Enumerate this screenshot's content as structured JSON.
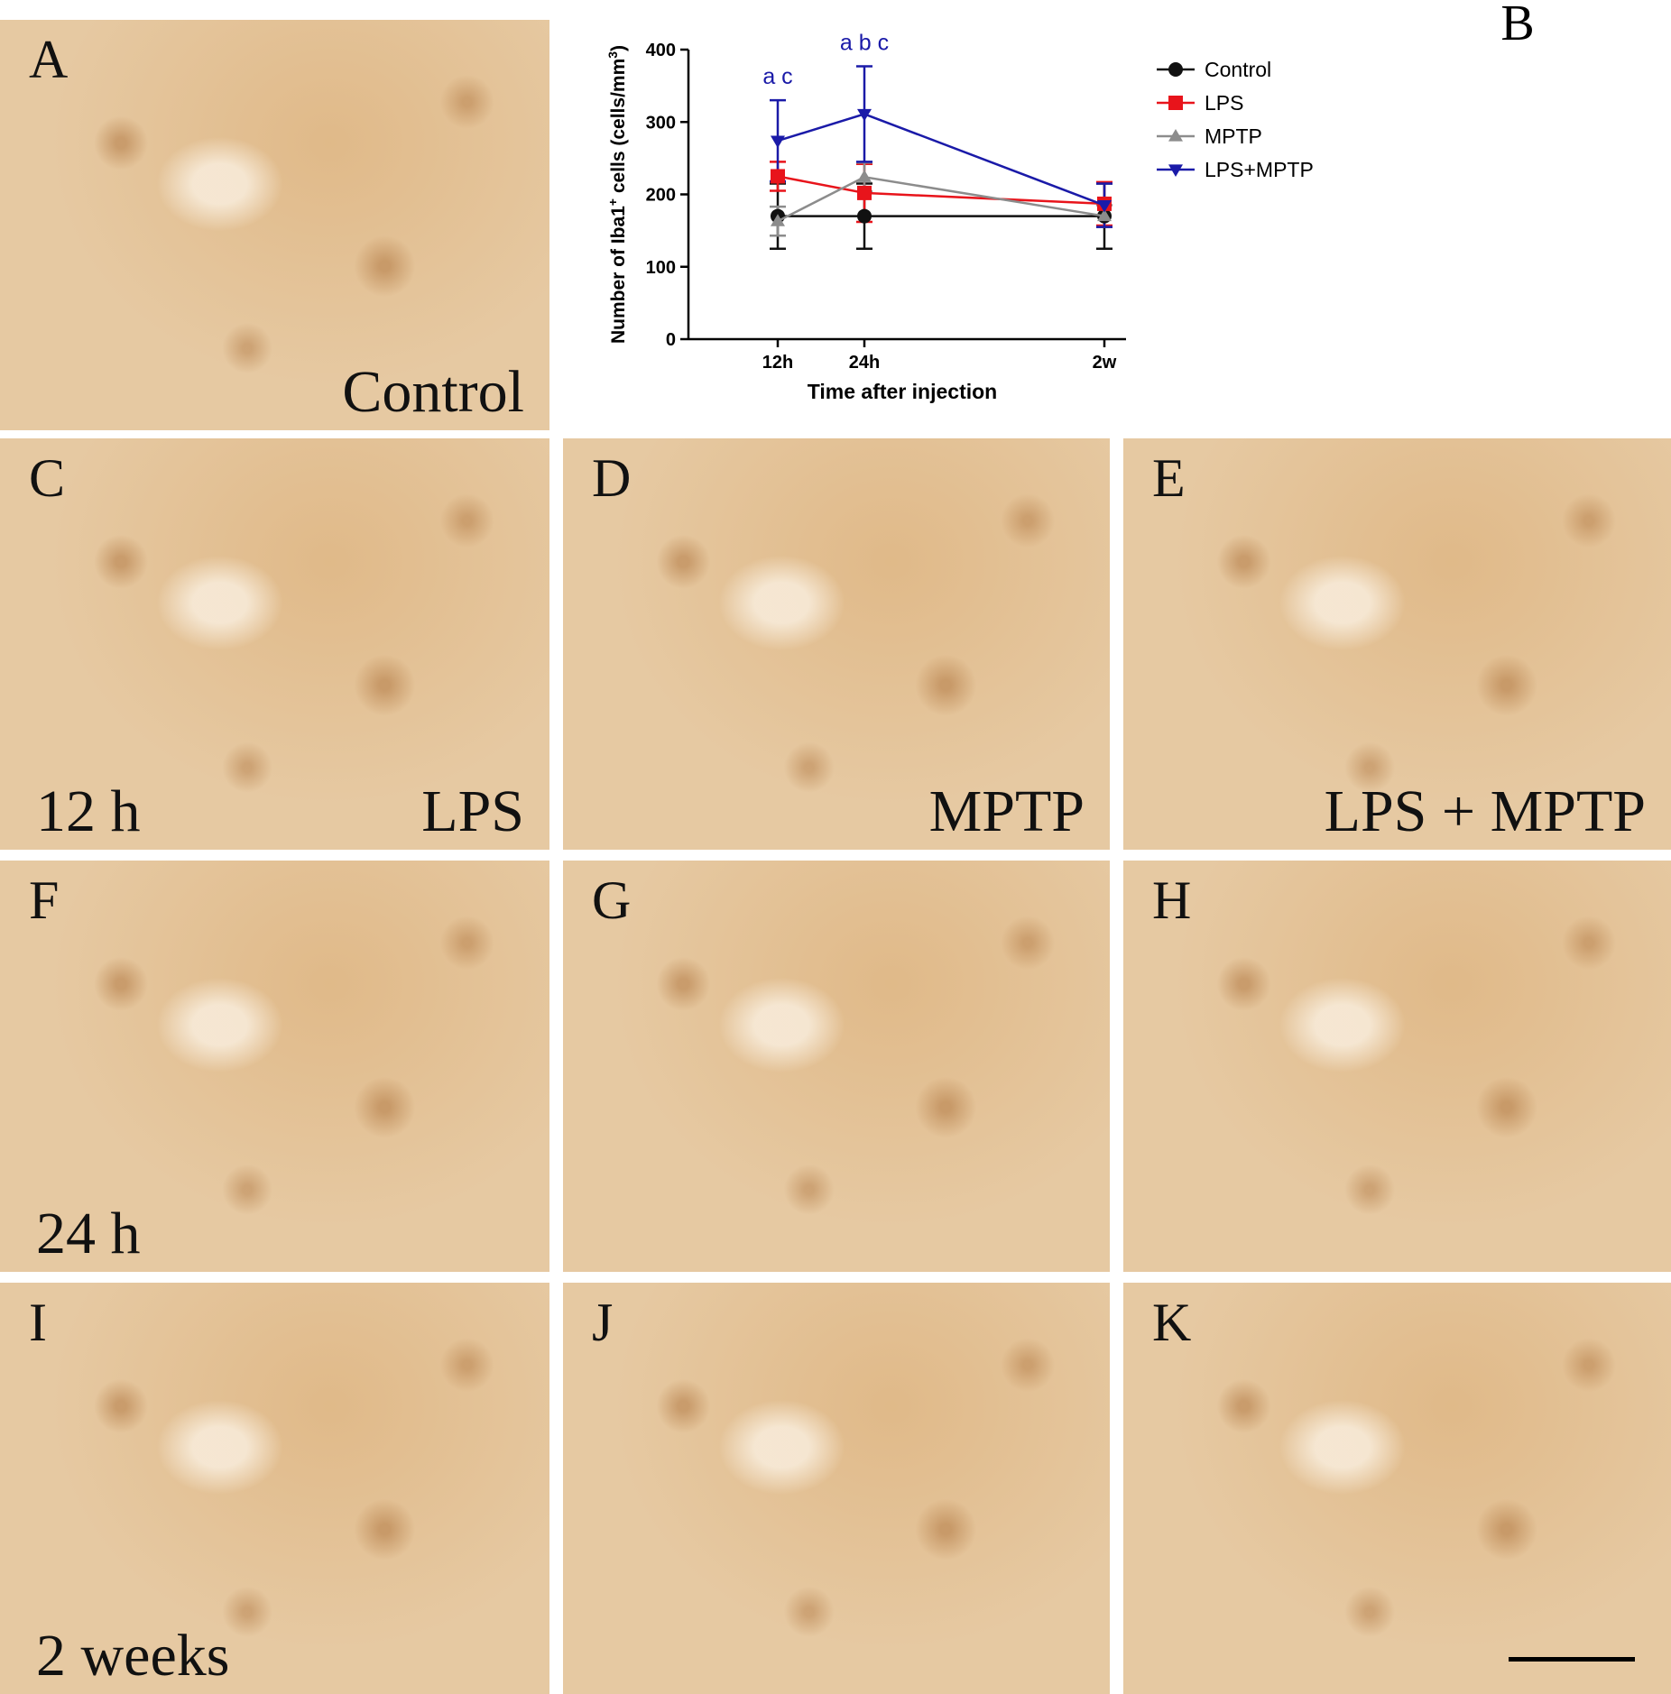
{
  "chart_data": {
    "type": "line",
    "panel_label": "B",
    "ylabel": [
      "Number of Iba1",
      "+",
      " cells (cells/mm",
      "3",
      ")"
    ],
    "xlabel": "Time after injection",
    "categories": [
      "12h",
      "24h",
      "2w"
    ],
    "ylim": [
      0,
      400
    ],
    "yticks": [
      0,
      100,
      200,
      300,
      400
    ],
    "series": [
      {
        "name": "Control",
        "color": "#111111",
        "marker": "circle",
        "values": [
          170,
          170,
          170
        ],
        "errors": [
          45,
          45,
          45
        ]
      },
      {
        "name": "LPS",
        "color": "#e8141b",
        "marker": "square",
        "values": [
          225,
          202,
          187
        ],
        "errors": [
          20,
          40,
          30
        ]
      },
      {
        "name": "MPTP",
        "color": "#8c8c8c",
        "marker": "triangle-up",
        "values": [
          163,
          224,
          170
        ],
        "errors": [
          20,
          20,
          15
        ]
      },
      {
        "name": "LPS+MPTP",
        "color": "#1a1aa8",
        "marker": "triangle-down",
        "values": [
          274,
          311,
          185
        ],
        "errors": [
          56,
          66,
          30
        ]
      }
    ],
    "annotations": [
      {
        "text": "a c",
        "category": 0,
        "color": "#1a1aa8"
      },
      {
        "text": "a b c",
        "category": 1,
        "color": "#1a1aa8"
      }
    ]
  },
  "panels": [
    {
      "letter": "A",
      "caption": "Control"
    },
    {
      "letter": "C",
      "caption": "LPS",
      "time": "12 h"
    },
    {
      "letter": "D",
      "caption": "MPTP"
    },
    {
      "letter": "E",
      "caption": "LPS + MPTP"
    },
    {
      "letter": "F",
      "time": "24 h"
    },
    {
      "letter": "G"
    },
    {
      "letter": "H"
    },
    {
      "letter": "I",
      "time": "2 weeks"
    },
    {
      "letter": "J"
    },
    {
      "letter": "K"
    }
  ]
}
